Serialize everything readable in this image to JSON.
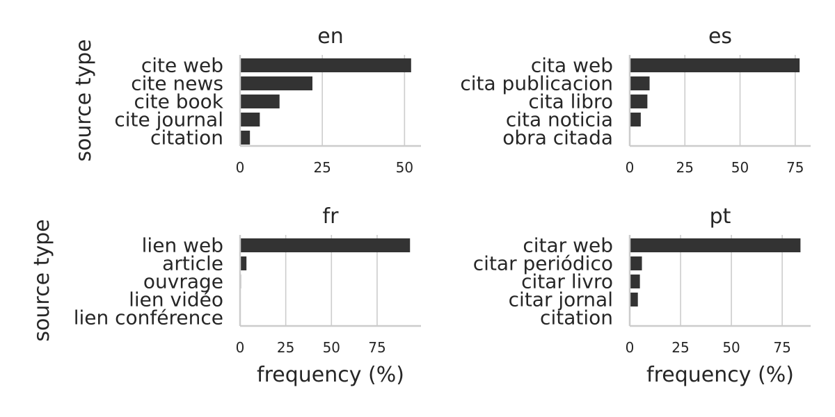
{
  "figure": {
    "ylabel": "source type",
    "xlabel": "frequency (%)",
    "bar_color": "#333333",
    "grid_color": "#cccccc",
    "background": "#ffffff"
  },
  "chart_data": [
    {
      "type": "bar",
      "orientation": "horizontal",
      "title": "en",
      "categories": [
        "cite web",
        "cite news",
        "cite book",
        "cite journal",
        "citation"
      ],
      "values": [
        52,
        22,
        12,
        6,
        3
      ],
      "xlim": [
        0,
        55
      ],
      "xticks": [
        0,
        25,
        50
      ],
      "xlabel": "",
      "ylabel": "source type",
      "grid": true
    },
    {
      "type": "bar",
      "orientation": "horizontal",
      "title": "es",
      "categories": [
        "cita web",
        "cita publicacion",
        "cita libro",
        "cita noticia",
        "obra citada"
      ],
      "values": [
        77,
        9,
        8,
        5,
        0.3
      ],
      "xlim": [
        0,
        82
      ],
      "xticks": [
        0,
        25,
        50,
        75
      ],
      "xlabel": "",
      "ylabel": "",
      "grid": true
    },
    {
      "type": "bar",
      "orientation": "horizontal",
      "title": "fr",
      "categories": [
        "lien web",
        "article",
        "ouvrage",
        "lien vidéo",
        "lien conférence"
      ],
      "values": [
        93,
        3.5,
        0.5,
        0.3,
        0.2
      ],
      "xlim": [
        0,
        99
      ],
      "xticks": [
        0,
        25,
        50,
        75
      ],
      "xlabel": "frequency (%)",
      "ylabel": "source type",
      "grid": true
    },
    {
      "type": "bar",
      "orientation": "horizontal",
      "title": "pt",
      "categories": [
        "citar web",
        "citar periódico",
        "citar livro",
        "citar jornal",
        "citation"
      ],
      "values": [
        84,
        6,
        5,
        4,
        0.3
      ],
      "xlim": [
        0,
        89
      ],
      "xticks": [
        0,
        25,
        50,
        75
      ],
      "xlabel": "frequency (%)",
      "ylabel": "",
      "grid": true
    }
  ]
}
